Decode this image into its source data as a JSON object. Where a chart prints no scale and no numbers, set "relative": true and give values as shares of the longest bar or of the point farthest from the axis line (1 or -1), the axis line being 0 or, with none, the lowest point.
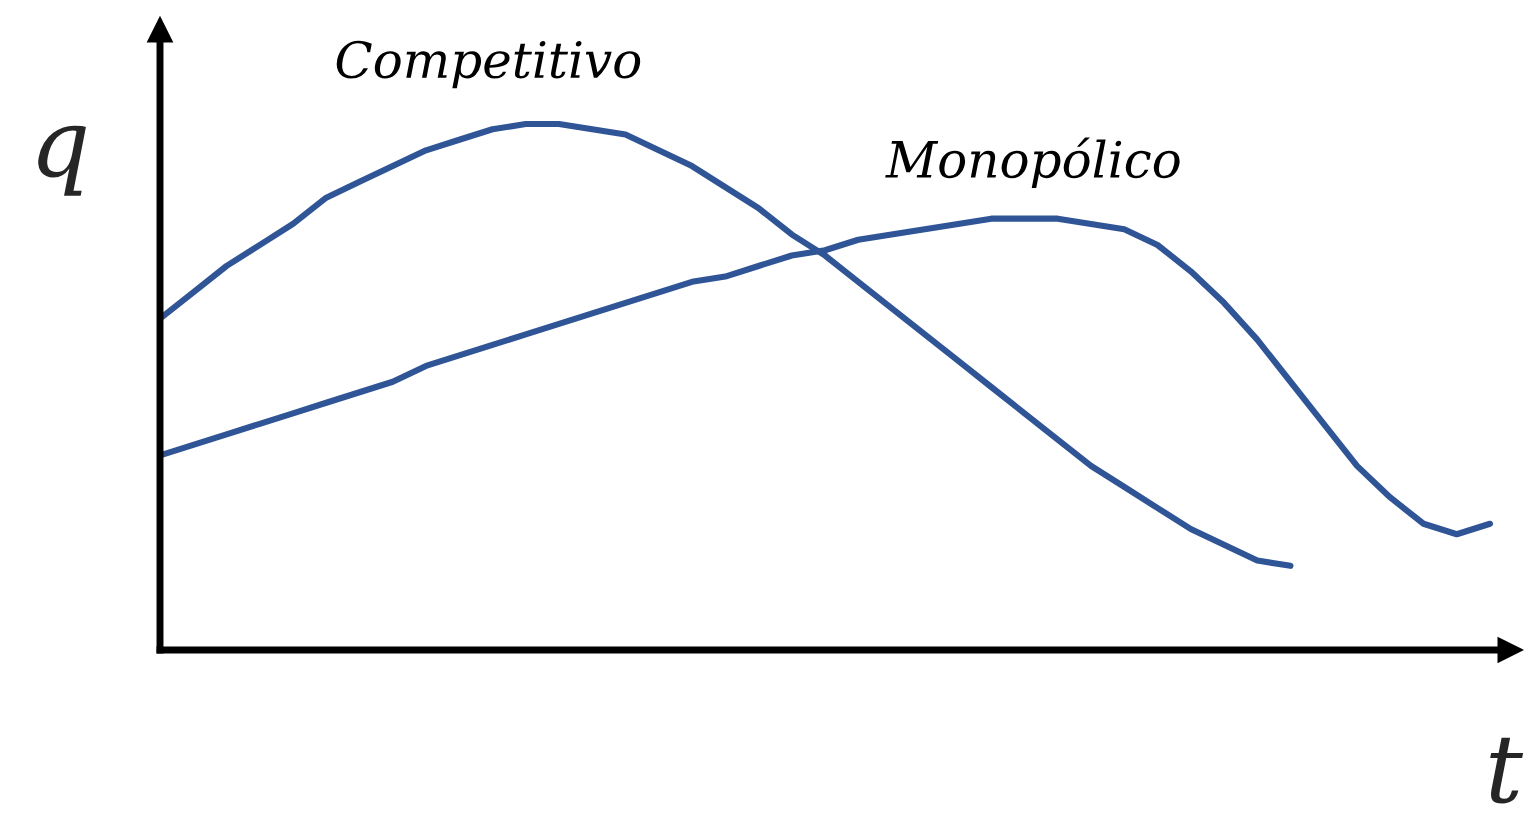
{
  "chart_data": {
    "type": "line",
    "relative": true,
    "xlabel": "t",
    "ylabel": "q",
    "legend": false,
    "marker": "none",
    "line_style": "solid",
    "categories": [
      null,
      null,
      null,
      null,
      null,
      null,
      null,
      null,
      null,
      null,
      null,
      null,
      null,
      null,
      null,
      null,
      null,
      null,
      null,
      null,
      null,
      null,
      null,
      null,
      null,
      null,
      null,
      null,
      null,
      null,
      null,
      null,
      null,
      null,
      null,
      null,
      null,
      null,
      null,
      null,
      null
    ],
    "series": [
      {
        "name": "Competitivo",
        "color": "#2f5597",
        "values": [
          0.63,
          0.68,
          0.73,
          0.77,
          0.81,
          0.86,
          0.89,
          0.92,
          0.95,
          0.97,
          0.99,
          1,
          1,
          0.99,
          0.98,
          0.95,
          0.92,
          0.88,
          0.84,
          0.79,
          0.75,
          0.7,
          0.65,
          0.6,
          0.55,
          0.5,
          0.45,
          0.4,
          0.35,
          0.31,
          0.27,
          0.23,
          0.2,
          0.17,
          0.16,
          null,
          null,
          null,
          null,
          null,
          null
        ]
      },
      {
        "name": "Monopólico",
        "color": "#2f5597",
        "values": [
          0.37,
          0.39,
          0.41,
          0.43,
          0.45,
          0.47,
          0.49,
          0.51,
          0.54,
          0.56,
          0.58,
          0.6,
          0.62,
          0.64,
          0.66,
          0.68,
          0.7,
          0.71,
          0.73,
          0.75,
          0.76,
          0.78,
          0.79,
          0.8,
          0.81,
          0.82,
          0.82,
          0.82,
          0.81,
          0.8,
          0.77,
          0.72,
          0.66,
          0.59,
          0.51,
          0.43,
          0.35,
          0.29,
          0.24,
          0.22,
          0.24
        ]
      }
    ]
  }
}
